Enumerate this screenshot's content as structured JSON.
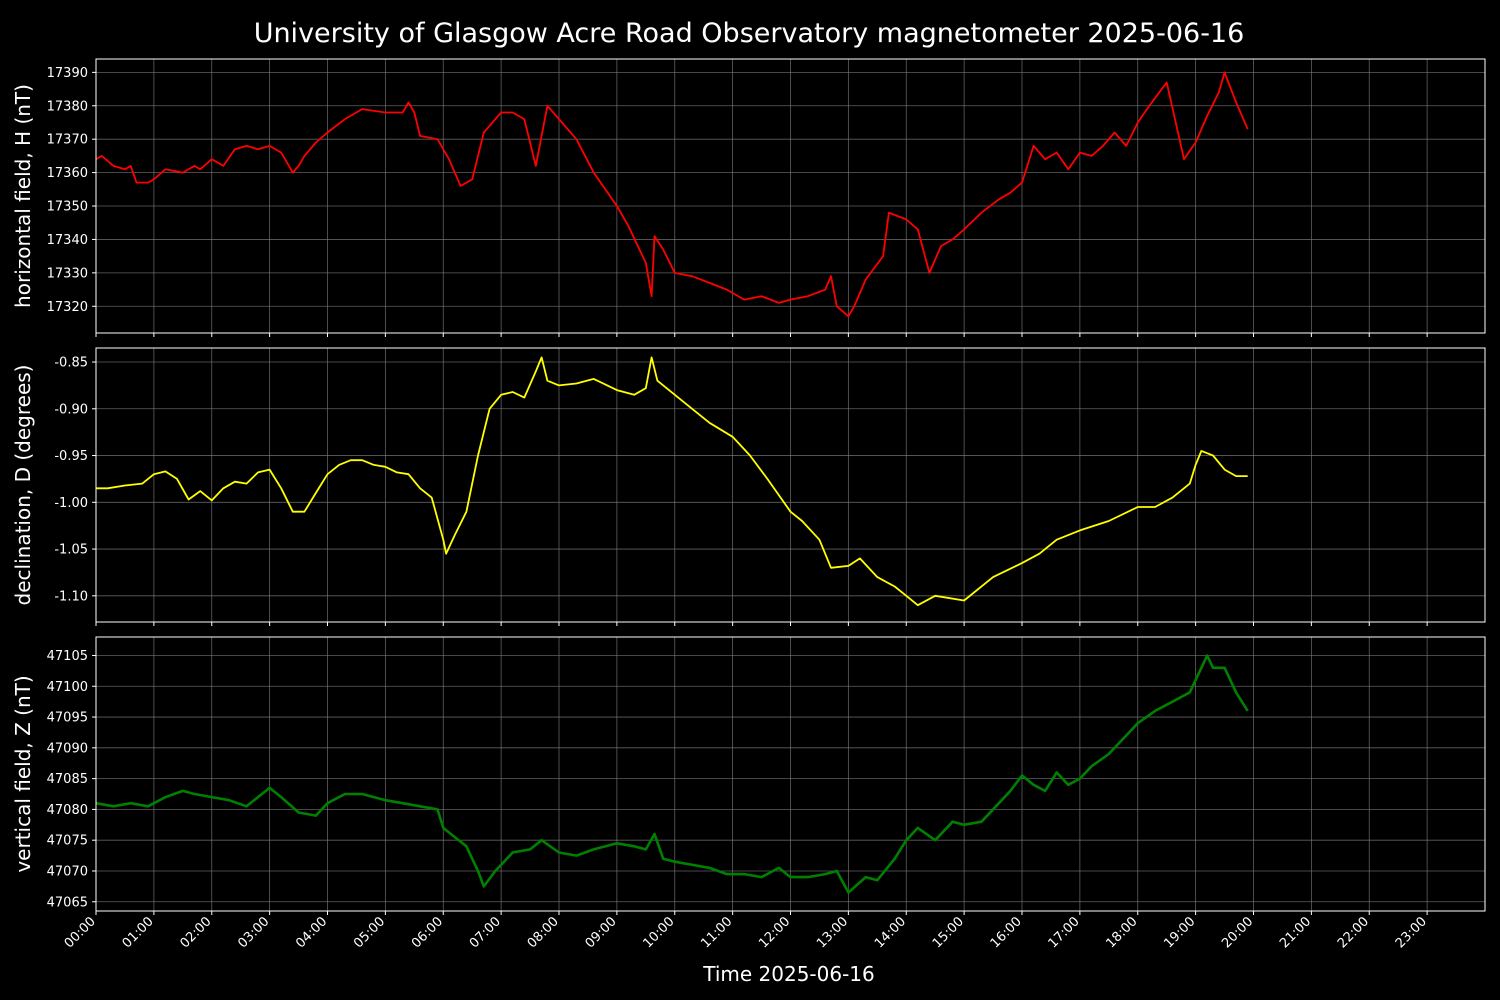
{
  "title": "University of Glasgow Acre Road Observatory magnetometer 2025-06-16",
  "xlabel": "Time 2025-06-16",
  "x_ticks": [
    "00:00",
    "01:00",
    "02:00",
    "03:00",
    "04:00",
    "05:00",
    "06:00",
    "07:00",
    "08:00",
    "09:00",
    "10:00",
    "11:00",
    "12:00",
    "13:00",
    "14:00",
    "15:00",
    "16:00",
    "17:00",
    "18:00",
    "19:00",
    "20:00",
    "21:00",
    "22:00",
    "23:00"
  ],
  "chart_data": [
    {
      "type": "line",
      "ylabel": "horizontal field, H (nT)",
      "color": "#ff0000",
      "xlim": [
        0,
        24
      ],
      "ylim": [
        17312,
        17394
      ],
      "yticks": [
        17320,
        17330,
        17340,
        17350,
        17360,
        17370,
        17380,
        17390
      ],
      "grid": true,
      "x": [
        0,
        0.1,
        0.3,
        0.5,
        0.6,
        0.7,
        0.9,
        1.0,
        1.2,
        1.5,
        1.7,
        1.8,
        2.0,
        2.2,
        2.4,
        2.6,
        2.8,
        3.0,
        3.2,
        3.4,
        3.5,
        3.6,
        3.8,
        4.0,
        4.3,
        4.6,
        5.0,
        5.3,
        5.4,
        5.5,
        5.6,
        5.9,
        6.1,
        6.3,
        6.5,
        6.7,
        7.0,
        7.2,
        7.4,
        7.6,
        7.8,
        8.0,
        8.3,
        8.6,
        9.0,
        9.2,
        9.5,
        9.6,
        9.65,
        9.8,
        10.0,
        10.3,
        10.6,
        10.9,
        11.2,
        11.5,
        11.8,
        12.0,
        12.3,
        12.6,
        12.7,
        12.8,
        13.0,
        13.1,
        13.3,
        13.6,
        13.7,
        14.0,
        14.2,
        14.4,
        14.6,
        14.8,
        15.0,
        15.3,
        15.6,
        15.8,
        16.0,
        16.2,
        16.4,
        16.6,
        16.8,
        17.0,
        17.2,
        17.4,
        17.6,
        17.8,
        18.0,
        18.2,
        18.5,
        18.8,
        19.0,
        19.2,
        19.4,
        19.5,
        19.7,
        19.9
      ],
      "y": [
        17364,
        17365,
        17362,
        17361,
        17362,
        17357,
        17357,
        17358,
        17361,
        17360,
        17362,
        17361,
        17364,
        17362,
        17367,
        17368,
        17367,
        17368,
        17366,
        17360,
        17362,
        17365,
        17369,
        17372,
        17376,
        17379,
        17378,
        17378,
        17381,
        17378,
        17371,
        17370,
        17364,
        17356,
        17358,
        17372,
        17378,
        17378,
        17376,
        17362,
        17380,
        17376,
        17370,
        17360,
        17350,
        17344,
        17333,
        17323,
        17341,
        17337,
        17330,
        17329,
        17327,
        17325,
        17322,
        17323,
        17321,
        17322,
        17323,
        17325,
        17329,
        17320,
        17317,
        17320,
        17328,
        17335,
        17348,
        17346,
        17343,
        17330,
        17338,
        17340,
        17343,
        17348,
        17352,
        17354,
        17357,
        17368,
        17364,
        17366,
        17361,
        17366,
        17365,
        17368,
        17372,
        17368,
        17375,
        17380,
        17387,
        17364,
        17369,
        17377,
        17384,
        17390,
        17381,
        17373
      ]
    },
    {
      "type": "line",
      "ylabel": "declination, D (degrees)",
      "color": "#ffff00",
      "xlim": [
        0,
        24
      ],
      "ylim": [
        -1.128,
        -0.835
      ],
      "yticks": [
        -1.1,
        -1.05,
        -1.0,
        -0.95,
        -0.9,
        -0.85
      ],
      "grid": true,
      "x": [
        0,
        0.2,
        0.5,
        0.8,
        1.0,
        1.2,
        1.4,
        1.6,
        1.8,
        2.0,
        2.2,
        2.4,
        2.6,
        2.8,
        3.0,
        3.2,
        3.4,
        3.6,
        3.8,
        4.0,
        4.2,
        4.4,
        4.6,
        4.8,
        5.0,
        5.2,
        5.4,
        5.6,
        5.8,
        6.0,
        6.05,
        6.2,
        6.4,
        6.6,
        6.8,
        7.0,
        7.2,
        7.4,
        7.6,
        7.7,
        7.8,
        8.0,
        8.3,
        8.6,
        9.0,
        9.3,
        9.5,
        9.6,
        9.7,
        10.0,
        10.3,
        10.6,
        11.0,
        11.3,
        11.6,
        12.0,
        12.2,
        12.5,
        12.7,
        13.0,
        13.2,
        13.5,
        13.8,
        14.0,
        14.2,
        14.5,
        15.0,
        15.5,
        16.0,
        16.3,
        16.6,
        17.0,
        17.5,
        18.0,
        18.3,
        18.6,
        18.9,
        19.0,
        19.1,
        19.3,
        19.5,
        19.7,
        19.9
      ],
      "y": [
        -0.985,
        -0.985,
        -0.982,
        -0.98,
        -0.97,
        -0.967,
        -0.975,
        -0.997,
        -0.988,
        -0.998,
        -0.985,
        -0.978,
        -0.98,
        -0.968,
        -0.965,
        -0.985,
        -1.01,
        -1.01,
        -0.99,
        -0.97,
        -0.96,
        -0.955,
        -0.955,
        -0.96,
        -0.962,
        -0.968,
        -0.97,
        -0.985,
        -0.995,
        -1.04,
        -1.055,
        -1.035,
        -1.01,
        -0.95,
        -0.9,
        -0.885,
        -0.882,
        -0.888,
        -0.86,
        -0.845,
        -0.87,
        -0.875,
        -0.873,
        -0.868,
        -0.88,
        -0.885,
        -0.878,
        -0.845,
        -0.87,
        -0.885,
        -0.9,
        -0.915,
        -0.93,
        -0.95,
        -0.975,
        -1.01,
        -1.02,
        -1.04,
        -1.07,
        -1.068,
        -1.06,
        -1.08,
        -1.09,
        -1.1,
        -1.11,
        -1.1,
        -1.105,
        -1.08,
        -1.065,
        -1.055,
        -1.04,
        -1.03,
        -1.02,
        -1.005,
        -1.005,
        -0.995,
        -0.98,
        -0.96,
        -0.945,
        -0.95,
        -0.965,
        -0.972,
        -0.972
      ]
    },
    {
      "type": "line",
      "ylabel": "vertical field, Z (nT)",
      "color": "#008000",
      "xlim": [
        0,
        24
      ],
      "ylim": [
        47063.5,
        47108
      ],
      "yticks": [
        47065,
        47070,
        47075,
        47080,
        47085,
        47090,
        47095,
        47100,
        47105
      ],
      "grid": true,
      "x": [
        0,
        0.3,
        0.6,
        0.9,
        1.2,
        1.5,
        1.7,
        2.0,
        2.3,
        2.6,
        2.8,
        3.0,
        3.2,
        3.5,
        3.8,
        4.0,
        4.3,
        4.6,
        5.0,
        5.3,
        5.6,
        5.9,
        6.0,
        6.2,
        6.4,
        6.6,
        6.7,
        6.9,
        7.2,
        7.5,
        7.7,
        8.0,
        8.3,
        8.6,
        9.0,
        9.3,
        9.5,
        9.65,
        9.8,
        10.0,
        10.3,
        10.6,
        10.9,
        11.2,
        11.5,
        11.8,
        12.0,
        12.3,
        12.6,
        12.8,
        13.0,
        13.3,
        13.5,
        13.8,
        14.0,
        14.2,
        14.5,
        14.8,
        15.0,
        15.3,
        15.6,
        15.8,
        16.0,
        16.2,
        16.4,
        16.6,
        16.8,
        17.0,
        17.2,
        17.5,
        17.8,
        18.0,
        18.3,
        18.6,
        18.9,
        19.0,
        19.1,
        19.2,
        19.3,
        19.5,
        19.7,
        19.9
      ],
      "y": [
        47081,
        47080.5,
        47081,
        47080.5,
        47082,
        47083,
        47082.5,
        47082,
        47081.5,
        47080.5,
        47082,
        47083.5,
        47082,
        47079.5,
        47079,
        47081,
        47082.5,
        47082.5,
        47081.5,
        47081,
        47080.5,
        47080,
        47077,
        47075.5,
        47074,
        47070,
        47067.5,
        47070,
        47073,
        47073.5,
        47075,
        47073,
        47072.5,
        47073.5,
        47074.5,
        47074,
        47073.5,
        47076,
        47072,
        47071.5,
        47071,
        47070.5,
        47069.5,
        47069.5,
        47069,
        47070.5,
        47069,
        47069,
        47069.5,
        47070,
        47066.5,
        47069,
        47068.5,
        47072,
        47075,
        47077,
        47075,
        47078,
        47077.5,
        47078,
        47081,
        47083,
        47085.5,
        47084,
        47083,
        47086,
        47084,
        47085,
        47087,
        47089,
        47092,
        47094,
        47096,
        47097.5,
        47099,
        47101,
        47103,
        47105,
        47103,
        47103,
        47099,
        47096
      ]
    }
  ]
}
